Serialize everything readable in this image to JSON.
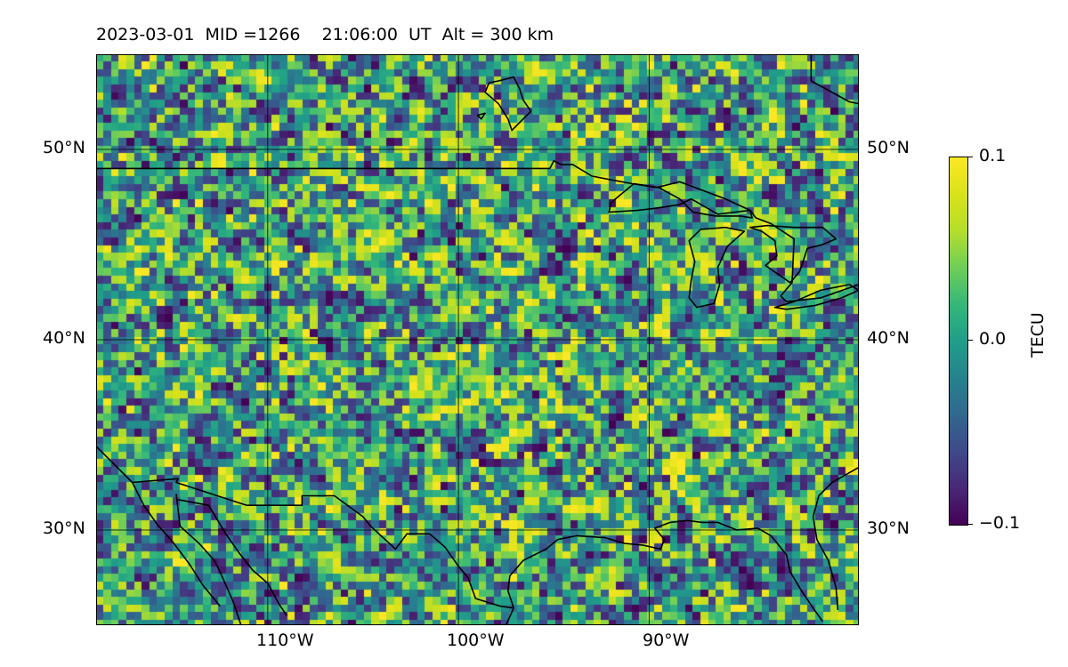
{
  "title": "2023-03-01  MID =1266    21:06:00  UT  Alt = 300 km",
  "map": {
    "lon_range": [
      -119,
      -79
    ],
    "lat_range": [
      25,
      55
    ],
    "lon_ticks": [
      "110°W",
      "100°W",
      "90°W"
    ],
    "lat_ticks": [
      "50°N",
      "40°N",
      "30°N"
    ],
    "grid": true,
    "colormap": "viridis",
    "coastline_color": "#000000"
  },
  "colorbar": {
    "label": "TECU",
    "max_label": "0.1",
    "mid_label": "0.0",
    "min_label": "−0.1",
    "vmin": -0.1,
    "vmax": 0.1
  }
}
